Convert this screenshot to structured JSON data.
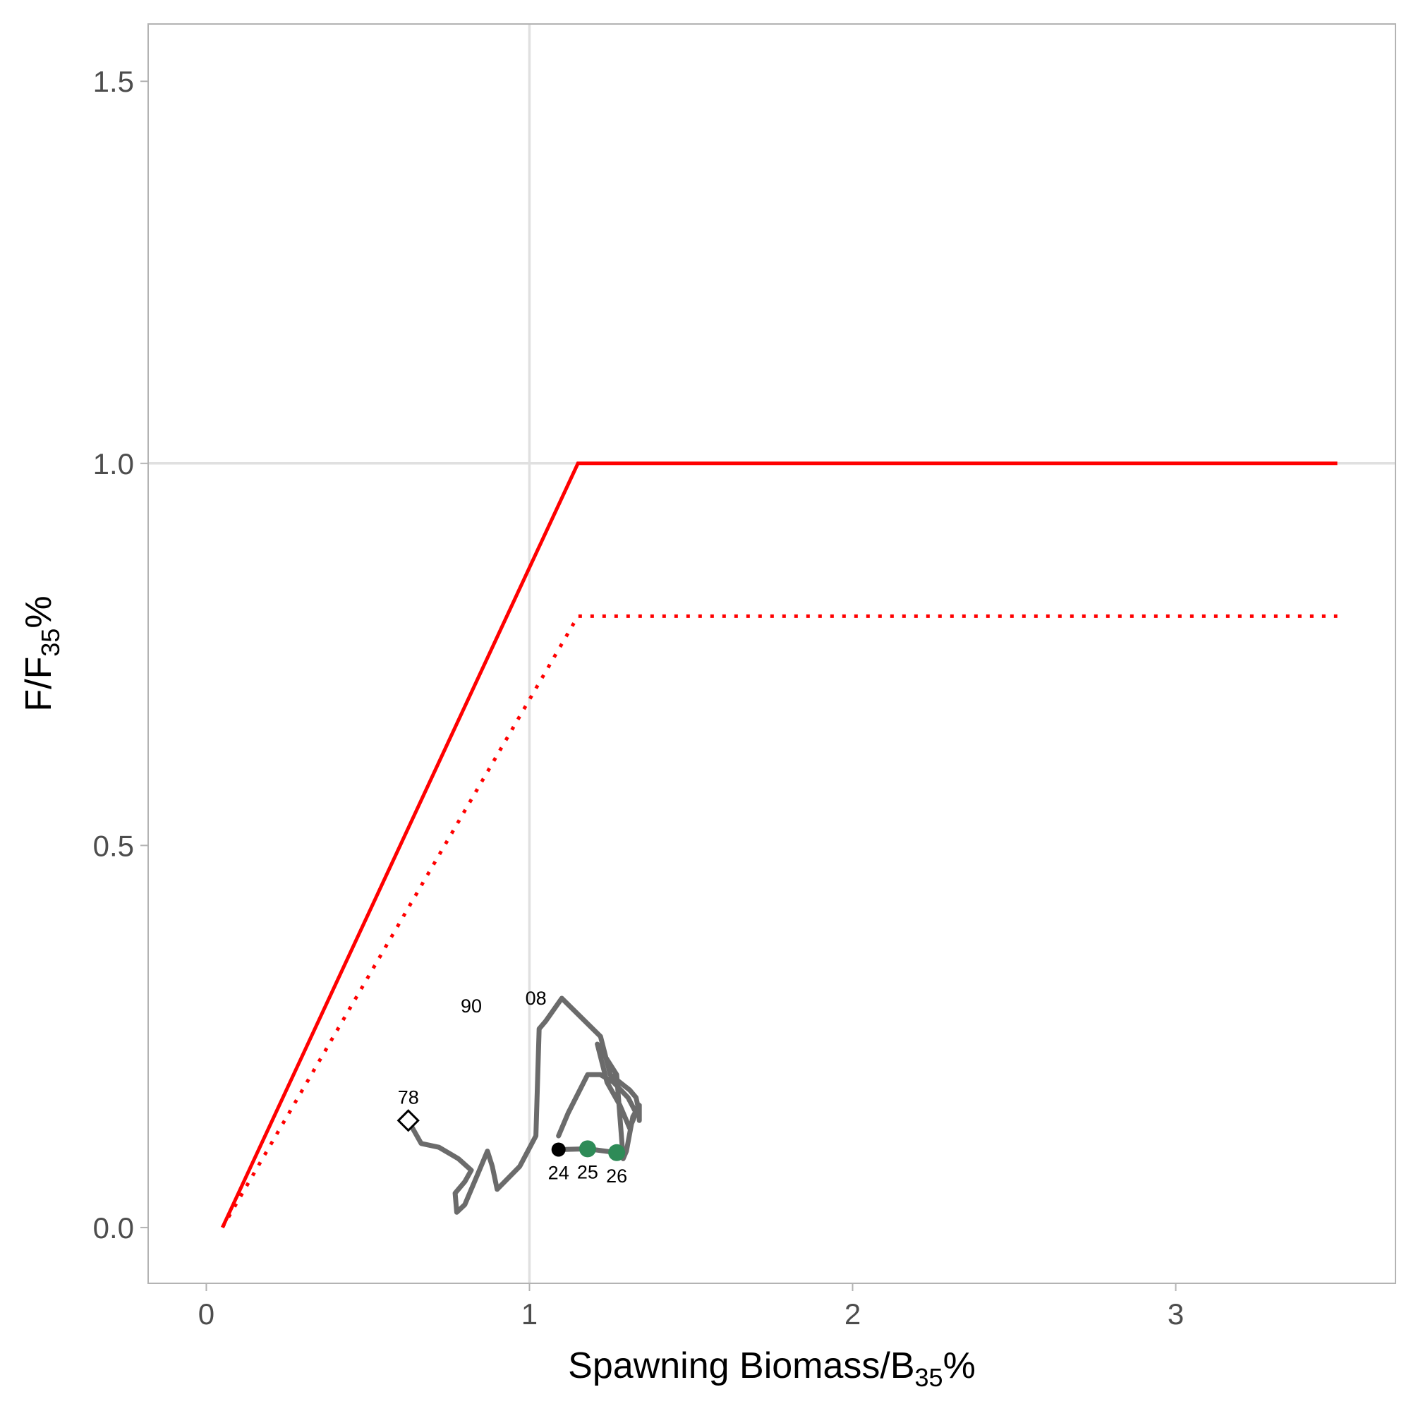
{
  "chart_data": {
    "type": "line",
    "xlabel": {
      "main": "Spawning Biomass/B",
      "sub": "35",
      "suffix": "%"
    },
    "ylabel": {
      "main": "F/F",
      "sub": "35",
      "suffix": "%"
    },
    "xlim": [
      -0.18,
      3.68
    ],
    "ylim": [
      -0.073,
      1.575
    ],
    "x_ticks": [
      0,
      1,
      2,
      3
    ],
    "x_tick_labels": [
      "0",
      "1",
      "2",
      "3"
    ],
    "y_ticks": [
      0.0,
      0.5,
      1.0,
      1.5
    ],
    "y_tick_labels": [
      "0.0",
      "0.5",
      "1.0",
      "1.5"
    ],
    "grid": {
      "major_x": [
        1
      ],
      "major_y": [
        1.0
      ]
    },
    "colors": {
      "control_rule": "#ff0000",
      "trajectory": "#6b6b6b",
      "current_point": "#000000",
      "projection_points": "#2e8b57",
      "panel_border": "#b3b3b3",
      "grid": "#e0e0e0"
    },
    "series": [
      {
        "style": "solid",
        "x": [
          0.05,
          1.15,
          3.5
        ],
        "y": [
          0.0,
          1.0,
          1.0
        ]
      },
      {
        "style": "dotted",
        "x": [
          0.05,
          1.15,
          3.5
        ],
        "y": [
          0.0,
          0.8,
          0.8
        ]
      },
      {
        "style": "trajectory",
        "x": [
          0.625,
          0.665,
          0.72,
          0.78,
          0.82,
          0.8,
          0.77,
          0.775,
          0.8,
          0.84,
          0.87,
          0.885,
          0.9,
          0.97,
          1.02,
          1.03,
          1.05,
          1.1,
          1.22,
          1.25,
          1.31,
          1.33,
          1.34,
          1.34,
          1.34,
          1.32,
          1.3,
          1.29,
          1.27,
          1.21,
          1.24,
          1.28,
          1.3,
          1.31,
          1.33,
          1.305,
          1.26,
          1.22,
          1.18,
          1.12,
          1.09
        ],
        "y": [
          0.14,
          0.11,
          0.105,
          0.09,
          0.075,
          0.06,
          0.045,
          0.02,
          0.03,
          0.07,
          0.1,
          0.08,
          0.05,
          0.08,
          0.12,
          0.26,
          0.27,
          0.3,
          0.25,
          0.2,
          0.18,
          0.17,
          0.15,
          0.14,
          0.16,
          0.145,
          0.1,
          0.09,
          0.2,
          0.24,
          0.19,
          0.16,
          0.14,
          0.13,
          0.15,
          0.17,
          0.19,
          0.2,
          0.2,
          0.15,
          0.12
        ]
      },
      {
        "style": "projection",
        "x": [
          1.09,
          1.18,
          1.27
        ],
        "y": [
          0.102,
          0.103,
          0.098
        ]
      }
    ],
    "points": [
      {
        "label": "78",
        "x": 0.625,
        "y": 0.14,
        "marker": "diamond"
      },
      {
        "label": "90",
        "x": 0.82,
        "y": 0.265,
        "marker": "none"
      },
      {
        "label": "08",
        "x": 1.02,
        "y": 0.275,
        "marker": "none"
      },
      {
        "label": "24",
        "x": 1.09,
        "y": 0.102,
        "marker": "circle",
        "color": "#000000"
      },
      {
        "label": "25",
        "x": 1.18,
        "y": 0.103,
        "marker": "circle",
        "color": "#2e8b57"
      },
      {
        "label": "26",
        "x": 1.27,
        "y": 0.098,
        "marker": "circle",
        "color": "#2e8b57"
      }
    ]
  }
}
